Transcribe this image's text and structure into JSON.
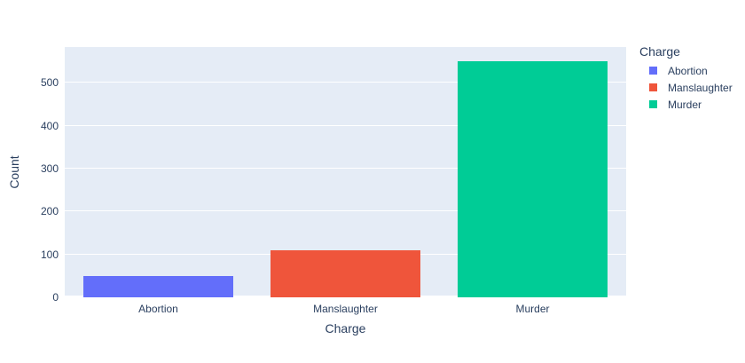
{
  "chart_data": {
    "type": "bar",
    "title": "",
    "xlabel": "Charge",
    "ylabel": "Count",
    "categories": [
      "Abortion",
      "Manslaughter",
      "Murder"
    ],
    "values": [
      50,
      110,
      550
    ],
    "colors": [
      "#636EFA",
      "#EF553B",
      "#00CC96"
    ],
    "ylim": [
      0,
      583
    ],
    "yticks": [
      0,
      100,
      200,
      300,
      400,
      500
    ],
    "grid": true,
    "legend": {
      "title": "Charge",
      "position": "right",
      "entries": [
        {
          "label": "Abortion",
          "color": "#636EFA"
        },
        {
          "label": "Manslaughter",
          "color": "#EF553B"
        },
        {
          "label": "Murder",
          "color": "#00CC96"
        }
      ]
    },
    "plot_bgcolor": "#E5ECF6",
    "gridcolor": "#FFFFFF",
    "text_color": "#2A3F5F"
  }
}
